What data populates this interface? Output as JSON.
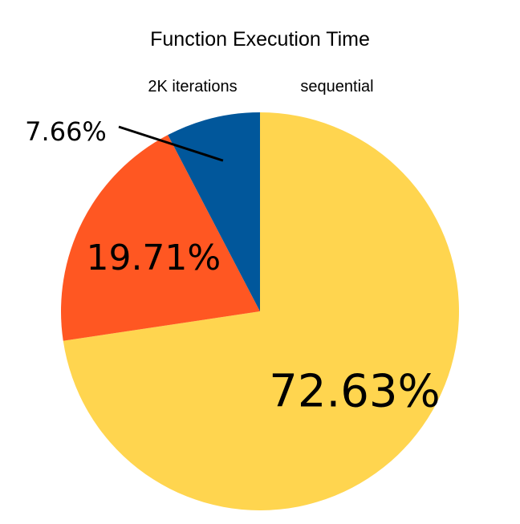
{
  "chart_data": {
    "type": "pie",
    "title": "Function Execution Time",
    "subtitles": [
      "2K iterations",
      "sequential"
    ],
    "slices": [
      {
        "value": 72.63,
        "label": "72.63%",
        "color": "#FFD54F"
      },
      {
        "value": 19.71,
        "label": "19.71%",
        "color": "#FF5722"
      },
      {
        "value": 7.66,
        "label": "7.66%",
        "color": "#01579B"
      }
    ],
    "start_angle_deg": 0,
    "direction": "clockwise"
  }
}
